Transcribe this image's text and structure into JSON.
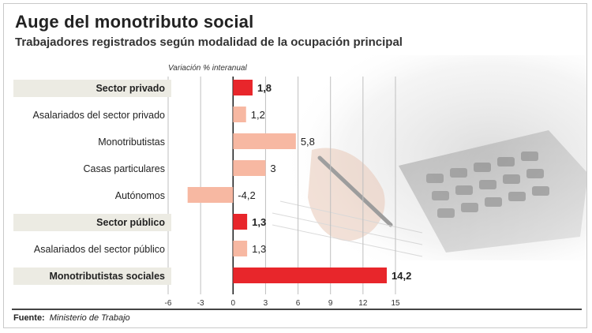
{
  "header": {
    "title": "Auge del monotributo social",
    "subtitle": "Trabajadores registrados según modalidad de la ocupación principal"
  },
  "chart_data": {
    "type": "bar",
    "orientation": "horizontal",
    "axis_title": "Variación % interanual",
    "categories": [
      "Sector privado",
      "Asalariados del sector privado",
      "Monotributistas",
      "Casas particulares",
      "Autónomos",
      "Sector público",
      "Asalariados del sector público",
      "Monotributistas sociales"
    ],
    "values": [
      1.8,
      1.2,
      5.8,
      3,
      -4.2,
      1.3,
      1.3,
      14.2
    ],
    "value_labels": [
      "1,8",
      "1,2",
      "5,8",
      "3",
      "-4,2",
      "1,3",
      "1,3",
      "14,2"
    ],
    "highlighted": [
      true,
      false,
      false,
      false,
      false,
      true,
      false,
      true
    ],
    "xlim": [
      -6,
      15
    ],
    "xticks": [
      -6,
      -3,
      0,
      3,
      6,
      9,
      12,
      15
    ],
    "grid": true,
    "colors": {
      "highlight": "#e8262b",
      "normal": "#f7b8a2",
      "label_band": "#ecebe3"
    }
  },
  "footer": {
    "source_label": "Fuente:",
    "source_text": "Ministerio de Trabajo"
  }
}
